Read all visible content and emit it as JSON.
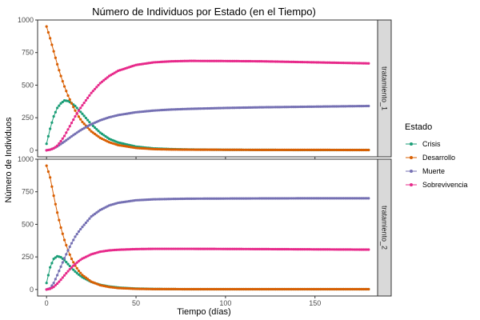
{
  "chart_data": {
    "type": "line",
    "title": "Número de Individuos por Estado (en el Tiempo)",
    "xlabel": "Tiempo (días)",
    "ylabel": "Número de Individuos",
    "xlim": [
      -5,
      185
    ],
    "ylim": [
      -50,
      1000
    ],
    "xticks": [
      0,
      50,
      100,
      150
    ],
    "yticks": [
      0,
      250,
      500,
      750,
      1000
    ],
    "grid": false,
    "legend": {
      "title": "Estado",
      "position": "right"
    },
    "colors": {
      "Crisis": "#1b9e77",
      "Desarrollo": "#d95f02",
      "Muerte": "#7570b3",
      "Sobrevivencia": "#e7298a"
    },
    "panels": [
      {
        "name": "tratamiento_1",
        "series": [
          {
            "name": "Crisis",
            "x": [
              0,
              2,
              4,
              6,
              8,
              10,
              12,
              14,
              16,
              18,
              20,
              25,
              30,
              35,
              40,
              50,
              60,
              70,
              80,
              100,
              120,
              150,
              180
            ],
            "values": [
              50,
              165,
              260,
              325,
              360,
              382,
              378,
              362,
              340,
              310,
              280,
              200,
              135,
              88,
              60,
              28,
              14,
              9,
              6,
              4,
              3,
              2,
              2
            ]
          },
          {
            "name": "Desarrollo",
            "x": [
              0,
              2,
              4,
              6,
              8,
              10,
              12,
              14,
              16,
              18,
              20,
              25,
              30,
              35,
              40,
              50,
              60,
              70,
              80,
              100,
              120,
              150,
              180
            ],
            "values": [
              950,
              860,
              760,
              660,
              570,
              490,
              420,
              360,
              305,
              258,
              218,
              145,
              95,
              62,
              40,
              18,
              9,
              6,
              5,
              4,
              3,
              3,
              2
            ]
          },
          {
            "name": "Muerte",
            "x": [
              0,
              2,
              4,
              6,
              8,
              10,
              12,
              14,
              16,
              18,
              20,
              25,
              30,
              35,
              40,
              50,
              60,
              70,
              80,
              100,
              120,
              150,
              180
            ],
            "values": [
              0,
              5,
              15,
              30,
              48,
              67,
              87,
              107,
              126,
              145,
              162,
              200,
              230,
              253,
              270,
              292,
              305,
              313,
              318,
              325,
              330,
              335,
              340
            ]
          },
          {
            "name": "Sobrevivencia",
            "x": [
              0,
              2,
              4,
              6,
              8,
              10,
              12,
              14,
              16,
              18,
              20,
              25,
              30,
              35,
              40,
              50,
              60,
              70,
              80,
              100,
              120,
              150,
              180
            ],
            "values": [
              0,
              5,
              15,
              35,
              70,
              110,
              160,
              210,
              260,
              305,
              345,
              440,
              515,
              570,
              610,
              655,
              675,
              683,
              686,
              685,
              683,
              675,
              667
            ]
          }
        ]
      },
      {
        "name": "tratamiento_2",
        "series": [
          {
            "name": "Crisis",
            "x": [
              0,
              2,
              4,
              6,
              8,
              10,
              12,
              14,
              16,
              18,
              20,
              25,
              30,
              35,
              40,
              50,
              60,
              70,
              80,
              100,
              120,
              150,
              180
            ],
            "values": [
              50,
              170,
              235,
              255,
              248,
              225,
              195,
              165,
              138,
              114,
              94,
              58,
              36,
              23,
              15,
              7,
              4,
              3,
              2,
              2,
              2,
              2,
              2
            ]
          },
          {
            "name": "Desarrollo",
            "x": [
              0,
              2,
              4,
              6,
              8,
              10,
              12,
              14,
              16,
              18,
              20,
              25,
              30,
              35,
              40,
              50,
              60,
              70,
              80,
              100,
              120,
              150,
              180
            ],
            "values": [
              950,
              860,
              720,
              590,
              475,
              380,
              300,
              235,
              183,
              143,
              111,
              60,
              33,
              19,
              11,
              5,
              3,
              3,
              2,
              2,
              2,
              2,
              2
            ]
          },
          {
            "name": "Muerte",
            "x": [
              0,
              2,
              4,
              6,
              8,
              10,
              12,
              14,
              16,
              18,
              20,
              25,
              30,
              35,
              40,
              50,
              60,
              70,
              80,
              100,
              120,
              150,
              180
            ],
            "values": [
              0,
              10,
              50,
              110,
              175,
              240,
              300,
              355,
              405,
              445,
              480,
              560,
              610,
              645,
              665,
              685,
              692,
              695,
              697,
              698,
              699,
              700,
              700
            ]
          },
          {
            "name": "Sobrevivencia",
            "x": [
              0,
              2,
              4,
              6,
              8,
              10,
              12,
              14,
              16,
              18,
              20,
              25,
              30,
              35,
              40,
              50,
              60,
              70,
              80,
              100,
              120,
              150,
              180
            ],
            "values": [
              0,
              5,
              20,
              45,
              75,
              108,
              140,
              170,
              195,
              218,
              237,
              270,
              290,
              300,
              305,
              310,
              312,
              312,
              312,
              311,
              310,
              308,
              306
            ]
          }
        ]
      }
    ]
  }
}
